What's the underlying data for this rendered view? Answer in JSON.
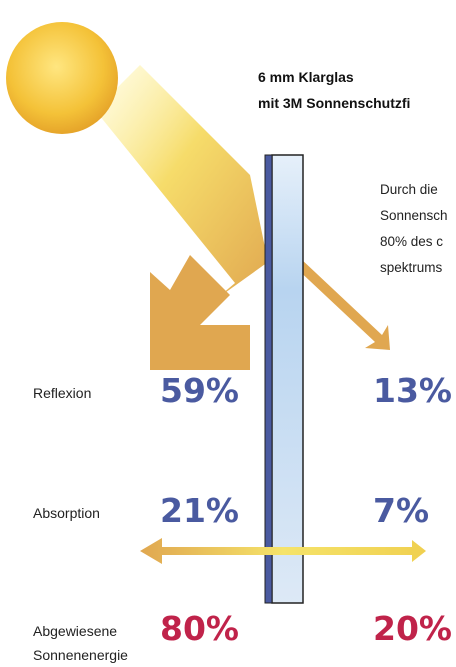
{
  "title_lines": [
    "6 mm Klarglas",
    "mit 3M Sonnenschutzfi"
  ],
  "description_lines": [
    "Durch die",
    "Sonnensch",
    "80% des c",
    "spektrums"
  ],
  "rows": [
    {
      "label_lines": [
        "Reflexion"
      ],
      "outside": "59%",
      "inside": "13%"
    },
    {
      "label_lines": [
        "Absorption"
      ],
      "outside": "21%",
      "inside": "7%"
    },
    {
      "label_lines": [
        "Abgewiesene",
        "Sonnenenergie"
      ],
      "outside": "80%",
      "inside": "20%"
    }
  ]
}
